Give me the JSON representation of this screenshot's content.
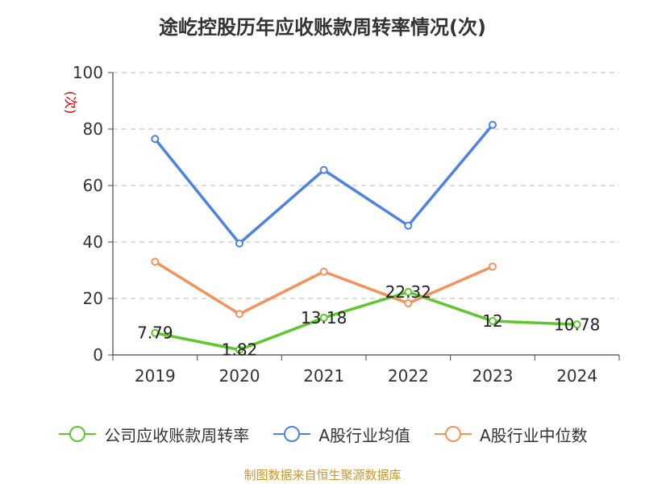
{
  "chart_data": {
    "type": "line",
    "title": "途屹控股历年应收账款周转率情况(次)",
    "ylabel": "(次)",
    "categories": [
      "2019",
      "2020",
      "2021",
      "2022",
      "2023",
      "2024"
    ],
    "yticks": [
      "0",
      "20",
      "40",
      "60",
      "80",
      "100"
    ],
    "ylim": [
      0,
      100
    ],
    "grid": true,
    "legend_position": "bottom",
    "series": [
      {
        "name": "公司应收账款周转率",
        "color": "#5ec72b",
        "values": [
          7.79,
          1.82,
          13.18,
          22.32,
          12,
          10.78
        ],
        "labels": [
          "7.79",
          "1.82",
          "13.18",
          "22.32",
          "12",
          "10.78"
        ]
      },
      {
        "name": "A股行业均值",
        "color": "#4e83e2",
        "values": [
          76.5,
          39.5,
          65.5,
          45.8,
          81.5,
          null
        ]
      },
      {
        "name": "A股行业中位数",
        "color": "#f5915d",
        "values": [
          33,
          14.5,
          29.5,
          18.3,
          31.3,
          null
        ]
      }
    ]
  },
  "source": "制图数据来自恒生聚源数据库"
}
